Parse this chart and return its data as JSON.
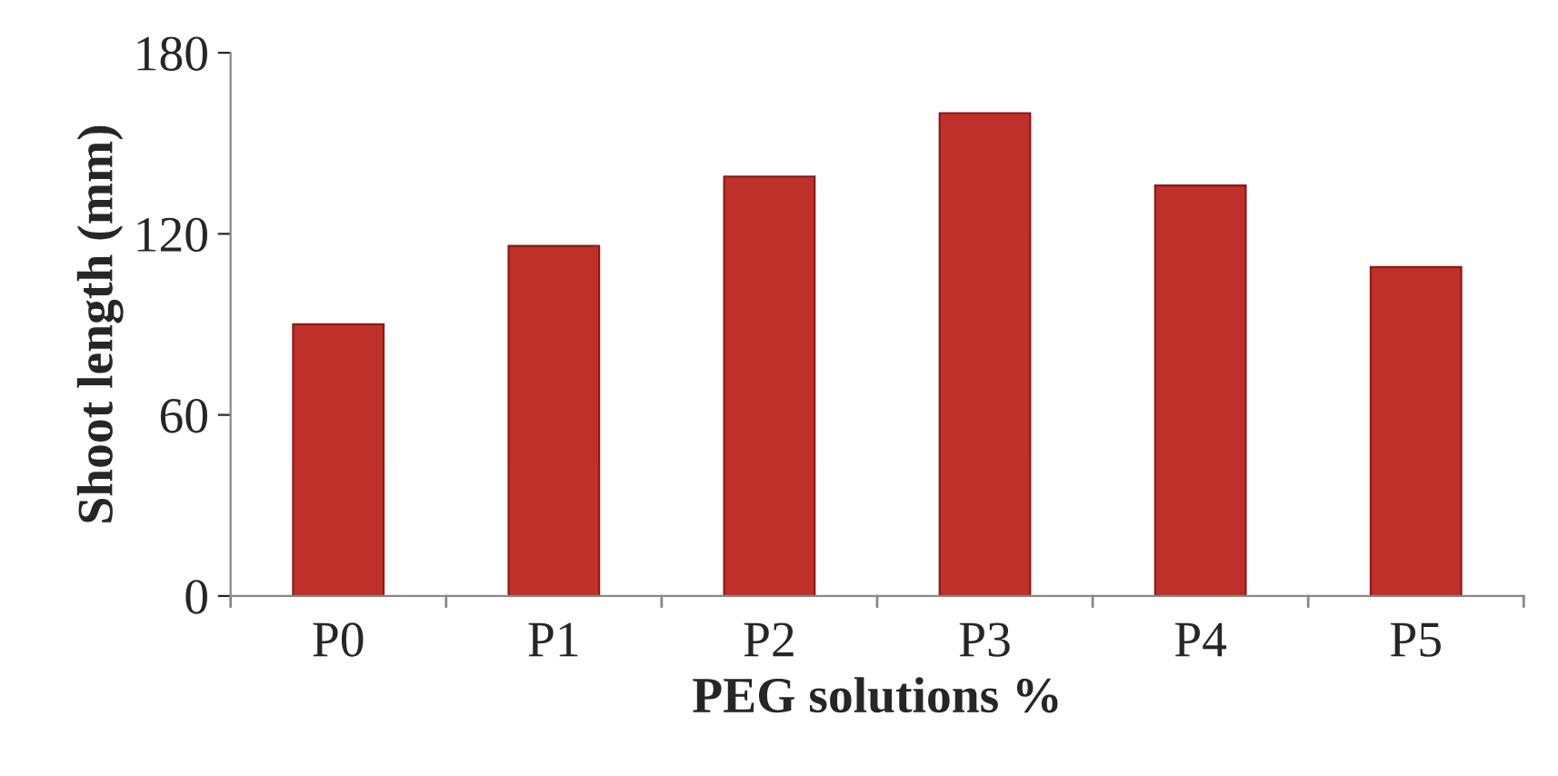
{
  "chart_data": {
    "type": "bar",
    "xlabel": "PEG solutions %",
    "ylabel": "Shoot length (mm)",
    "categories": [
      "P0",
      "P1",
      "P2",
      "P3",
      "P4",
      "P5"
    ],
    "values": [
      90,
      116,
      139,
      160,
      136,
      109
    ],
    "color": "#c0302b",
    "ylim": [
      0,
      180
    ],
    "yticks": [
      0,
      60,
      120,
      180
    ],
    "grid": false,
    "legend": false
  }
}
